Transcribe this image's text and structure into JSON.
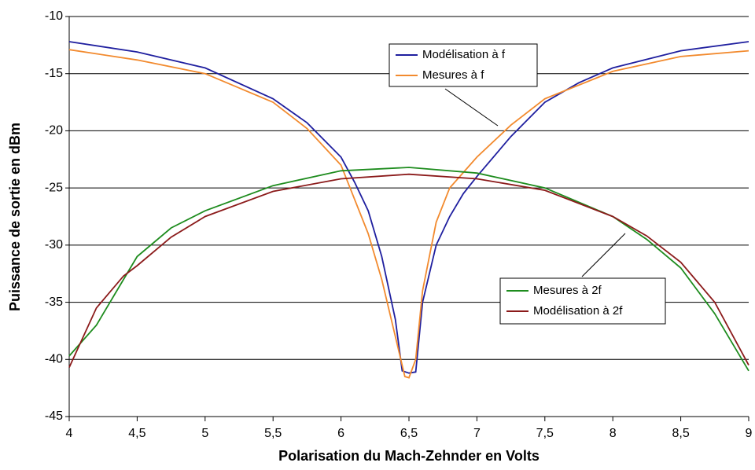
{
  "chart_data": {
    "type": "line",
    "xlabel": "Polarisation du Mach-Zehnder en Volts",
    "ylabel": "Puissance de sortie en dBm",
    "xlim": [
      4,
      9
    ],
    "xticks": [
      4,
      {
        "value": 4.5,
        "label": "4,5"
      },
      5,
      {
        "value": 5.5,
        "label": "5,5"
      },
      6,
      {
        "value": 6.5,
        "label": "6,5"
      },
      7,
      {
        "value": 7.5,
        "label": "7,5"
      },
      8,
      {
        "value": 8.5,
        "label": "8,5"
      },
      9
    ],
    "ylim": [
      -45,
      -10
    ],
    "yticks": [
      -10,
      -15,
      -20,
      -25,
      -30,
      -35,
      -40,
      -45
    ],
    "grid": true,
    "series": [
      {
        "name": "Modélisation à f",
        "color": "#1f1f9f",
        "x": [
          4,
          4.5,
          5,
          5.5,
          5.75,
          6,
          6.1,
          6.2,
          6.3,
          6.4,
          6.45,
          6.5,
          6.55,
          6.6,
          6.7,
          6.8,
          6.9,
          7,
          7.25,
          7.5,
          7.75,
          8,
          8.5,
          9
        ],
        "values": [
          -12.2,
          -13.1,
          -14.5,
          -17.2,
          -19.3,
          -22.3,
          -24.5,
          -27,
          -31,
          -36.5,
          -41,
          -41.2,
          -41.1,
          -35,
          -30,
          -27.5,
          -25.5,
          -24,
          -20.5,
          -17.5,
          -15.8,
          -14.5,
          -13,
          -12.2
        ]
      },
      {
        "name": "Mesures à f",
        "color": "#f28a2e",
        "x": [
          4,
          4.5,
          5,
          5.5,
          5.75,
          6,
          6.1,
          6.2,
          6.3,
          6.4,
          6.47,
          6.5,
          6.55,
          6.6,
          6.7,
          6.8,
          7,
          7.25,
          7.5,
          8,
          8.5,
          9
        ],
        "values": [
          -12.9,
          -13.8,
          -15,
          -17.5,
          -19.8,
          -23,
          -26,
          -29,
          -33,
          -38,
          -41.5,
          -41.6,
          -40,
          -34,
          -28,
          -25,
          -22.3,
          -19.5,
          -17.2,
          -14.8,
          -13.5,
          -13
        ]
      },
      {
        "name": "Mesures à 2f",
        "color": "#1e8c1e",
        "x": [
          4,
          4.2,
          4.4,
          4.5,
          4.75,
          5,
          5.5,
          6,
          6.5,
          7,
          7.5,
          8,
          8.25,
          8.5,
          8.75,
          9
        ],
        "values": [
          -39.7,
          -37,
          -33,
          -31,
          -28.5,
          -27,
          -24.8,
          -23.5,
          -23.2,
          -23.7,
          -25,
          -27.5,
          -29.5,
          -32,
          -36,
          -41
        ]
      },
      {
        "name": "Modélisation à 2f",
        "color": "#8b1a1a",
        "x": [
          4,
          4.2,
          4.4,
          4.5,
          4.75,
          5,
          5.5,
          6,
          6.5,
          7,
          7.5,
          8,
          8.25,
          8.5,
          8.75,
          9
        ],
        "values": [
          -40.7,
          -35.5,
          -32.7,
          -31.8,
          -29.3,
          -27.5,
          -25.3,
          -24.2,
          -23.8,
          -24.2,
          -25.2,
          -27.5,
          -29.2,
          -31.5,
          -35,
          -40.5
        ]
      }
    ]
  }
}
